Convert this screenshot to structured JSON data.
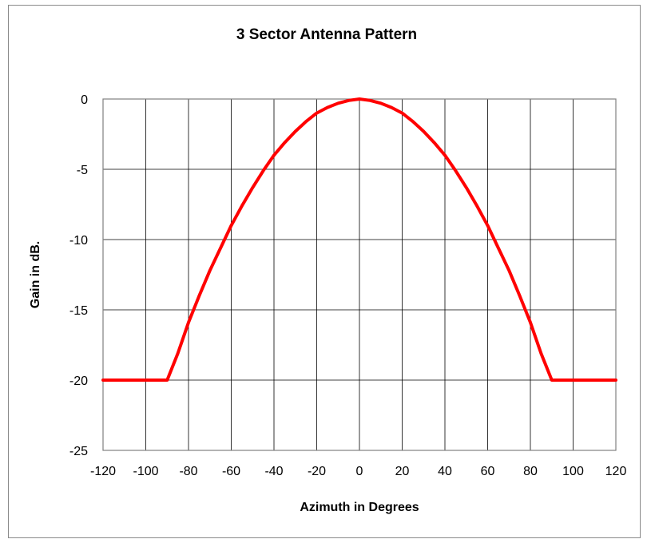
{
  "chart_data": {
    "type": "line",
    "title": "3 Sector Antenna Pattern",
    "xlabel": "Azimuth in Degrees",
    "ylabel": "Gain in dB.",
    "xlim": [
      -120,
      120
    ],
    "ylim": [
      -25,
      0
    ],
    "xticks": [
      -120,
      -100,
      -80,
      -60,
      -40,
      -20,
      0,
      20,
      40,
      60,
      80,
      100,
      120
    ],
    "yticks": [
      0,
      -5,
      -10,
      -15,
      -20,
      -25
    ],
    "xtick_labels": [
      "-120",
      "-100",
      "-80",
      "-60",
      "-40",
      "-20",
      "0",
      "20",
      "40",
      "60",
      "80",
      "100",
      "120"
    ],
    "ytick_labels": [
      "0",
      "-5",
      "-10",
      "-15",
      "-20",
      "-25"
    ],
    "grid": true,
    "legend": "none",
    "series": [
      {
        "color": "#ff0000",
        "x": [
          -120,
          -110,
          -100,
          -90,
          -85,
          -80,
          -75,
          -70,
          -65,
          -60,
          -55,
          -50,
          -45,
          -40,
          -35,
          -30,
          -25,
          -20,
          -15,
          -10,
          -5,
          0,
          5,
          10,
          15,
          20,
          25,
          30,
          35,
          40,
          45,
          50,
          55,
          60,
          65,
          70,
          75,
          80,
          85,
          90,
          100,
          110,
          120
        ],
        "y": [
          -20,
          -20,
          -20,
          -20,
          -18.1,
          -15.9,
          -14.0,
          -12.2,
          -10.6,
          -9.0,
          -7.6,
          -6.3,
          -5.1,
          -4.0,
          -3.1,
          -2.3,
          -1.6,
          -1.0,
          -0.6,
          -0.3,
          -0.1,
          0,
          -0.1,
          -0.3,
          -0.6,
          -1.0,
          -1.6,
          -2.3,
          -3.1,
          -4.0,
          -5.1,
          -6.3,
          -7.6,
          -9.0,
          -10.6,
          -12.2,
          -14.0,
          -15.9,
          -18.1,
          -20,
          -20,
          -20,
          -20
        ]
      }
    ]
  }
}
